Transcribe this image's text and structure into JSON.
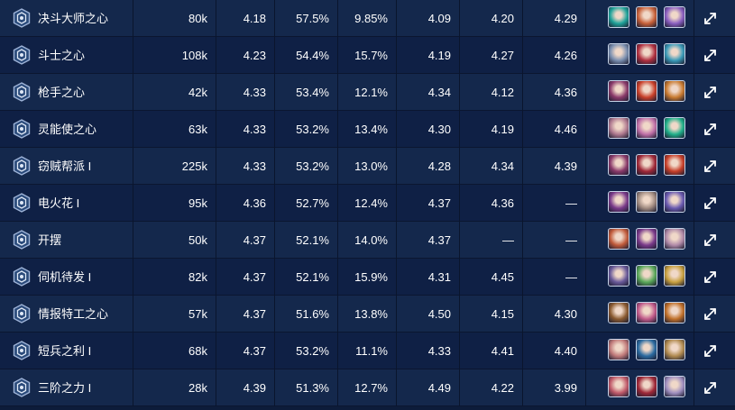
{
  "colors": {
    "row_odd": "#14284c",
    "row_even": "#0f2045",
    "text": "#ffffff"
  },
  "rows": [
    {
      "name": "决斗大师之心",
      "icon": "duelist-heart-icon",
      "games": "80k",
      "avg": "4.18",
      "top4": "57.5%",
      "win": "9.85%",
      "s1": "4.09",
      "s2": "4.20",
      "s3": "4.29",
      "champs": [
        {
          "icon": "champion-portrait-icon",
          "color": "#1fa39a"
        },
        {
          "icon": "champion-portrait-icon",
          "color": "#c8613a"
        },
        {
          "icon": "champion-portrait-icon",
          "color": "#8a5fc0"
        }
      ]
    },
    {
      "name": "斗士之心",
      "icon": "bruiser-heart-icon",
      "games": "108k",
      "avg": "4.23",
      "top4": "54.4%",
      "win": "15.7%",
      "s1": "4.19",
      "s2": "4.27",
      "s3": "4.26",
      "champs": [
        {
          "icon": "champion-portrait-icon",
          "color": "#7a8fb0"
        },
        {
          "icon": "champion-portrait-icon",
          "color": "#b03040"
        },
        {
          "icon": "champion-portrait-icon",
          "color": "#3a9ab8"
        }
      ]
    },
    {
      "name": "枪手之心",
      "icon": "gunner-heart-icon",
      "games": "42k",
      "avg": "4.33",
      "top4": "53.4%",
      "win": "12.1%",
      "s1": "4.34",
      "s2": "4.12",
      "s3": "4.36",
      "champs": [
        {
          "icon": "champion-portrait-icon",
          "color": "#8a3a6a"
        },
        {
          "icon": "champion-portrait-icon",
          "color": "#c8402a"
        },
        {
          "icon": "champion-portrait-icon",
          "color": "#c87a30"
        }
      ]
    },
    {
      "name": "灵能使之心",
      "icon": "psionic-heart-icon",
      "games": "63k",
      "avg": "4.33",
      "top4": "53.2%",
      "win": "13.4%",
      "s1": "4.30",
      "s2": "4.19",
      "s3": "4.46",
      "champs": [
        {
          "icon": "champion-portrait-icon",
          "color": "#b07a90"
        },
        {
          "icon": "champion-portrait-icon",
          "color": "#c070a8"
        },
        {
          "icon": "champion-portrait-icon",
          "color": "#20b08a"
        }
      ]
    },
    {
      "name": "窃贼帮派 I",
      "icon": "syndicate-icon",
      "games": "225k",
      "avg": "4.33",
      "top4": "53.2%",
      "win": "13.0%",
      "s1": "4.28",
      "s2": "4.34",
      "s3": "4.39",
      "champs": [
        {
          "icon": "champion-portrait-icon",
          "color": "#8a3a6a"
        },
        {
          "icon": "champion-portrait-icon",
          "color": "#a02838"
        },
        {
          "icon": "champion-portrait-icon",
          "color": "#c8402a"
        }
      ]
    },
    {
      "name": "电火花 I",
      "icon": "spark-icon",
      "games": "95k",
      "avg": "4.36",
      "top4": "52.7%",
      "win": "12.4%",
      "s1": "4.37",
      "s2": "4.36",
      "s3": "—",
      "champs": [
        {
          "icon": "champion-portrait-icon",
          "color": "#7a3a8a"
        },
        {
          "icon": "champion-portrait-icon",
          "color": "#a08a80"
        },
        {
          "icon": "champion-portrait-icon",
          "color": "#6a5ab0"
        }
      ]
    },
    {
      "name": "开摆",
      "icon": "relax-icon",
      "games": "50k",
      "avg": "4.37",
      "top4": "52.1%",
      "win": "14.0%",
      "s1": "4.37",
      "s2": "—",
      "s3": "—",
      "champs": [
        {
          "icon": "champion-portrait-icon",
          "color": "#c05a3a"
        },
        {
          "icon": "champion-portrait-icon",
          "color": "#7a3a8a"
        },
        {
          "icon": "champion-portrait-icon",
          "color": "#b08aa8"
        }
      ]
    },
    {
      "name": "伺机待发 I",
      "icon": "ready-icon",
      "games": "82k",
      "avg": "4.37",
      "top4": "52.1%",
      "win": "15.9%",
      "s1": "4.31",
      "s2": "4.45",
      "s3": "—",
      "champs": [
        {
          "icon": "champion-portrait-icon",
          "color": "#6a5a9a"
        },
        {
          "icon": "champion-portrait-icon",
          "color": "#5aa85a"
        },
        {
          "icon": "champion-portrait-icon",
          "color": "#c8a040"
        }
      ]
    },
    {
      "name": "情报特工之心",
      "icon": "agent-heart-icon",
      "games": "57k",
      "avg": "4.37",
      "top4": "51.6%",
      "win": "13.8%",
      "s1": "4.50",
      "s2": "4.15",
      "s3": "4.30",
      "champs": [
        {
          "icon": "champion-portrait-icon",
          "color": "#8a5a30"
        },
        {
          "icon": "champion-portrait-icon",
          "color": "#c05a8a"
        },
        {
          "icon": "champion-portrait-icon",
          "color": "#c0702a"
        }
      ]
    },
    {
      "name": "短兵之利 I",
      "icon": "blade-icon",
      "games": "68k",
      "avg": "4.37",
      "top4": "53.2%",
      "win": "11.1%",
      "s1": "4.33",
      "s2": "4.41",
      "s3": "4.40",
      "champs": [
        {
          "icon": "champion-portrait-icon",
          "color": "#c07a7a"
        },
        {
          "icon": "champion-portrait-icon",
          "color": "#2a6aa0"
        },
        {
          "icon": "champion-portrait-icon",
          "color": "#b08a50"
        }
      ]
    },
    {
      "name": "三阶之力 I",
      "icon": "tier-three-icon",
      "games": "28k",
      "avg": "4.39",
      "top4": "51.3%",
      "win": "12.7%",
      "s1": "4.49",
      "s2": "4.22",
      "s3": "3.99",
      "champs": [
        {
          "icon": "champion-portrait-icon",
          "color": "#c05a6a"
        },
        {
          "icon": "champion-portrait-icon",
          "color": "#a02838"
        },
        {
          "icon": "champion-portrait-icon",
          "color": "#a090c0"
        }
      ]
    }
  ]
}
